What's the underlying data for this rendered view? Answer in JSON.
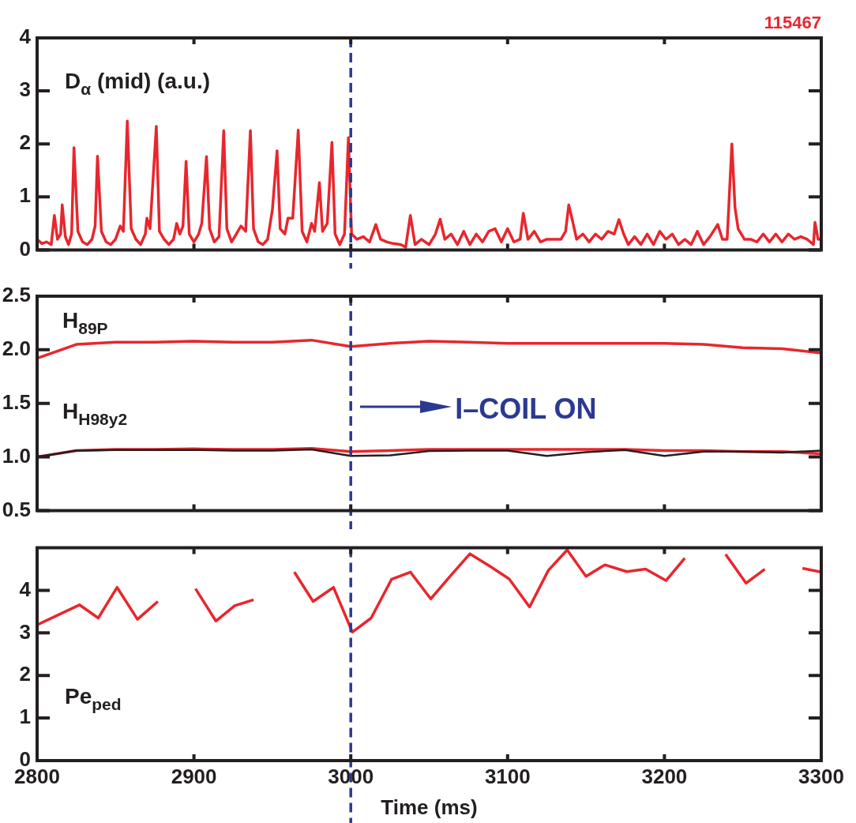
{
  "chart_data": [
    {
      "type": "line",
      "xlim": [
        2800,
        3300
      ],
      "xticks": [
        2800,
        2900,
        3000,
        3100,
        3200,
        3300
      ],
      "ylim": [
        0,
        4
      ],
      "yticks": [
        0,
        1,
        2,
        3,
        4
      ],
      "tick_labels": "y",
      "annotations": [
        "115467"
      ],
      "ref_lines": [
        {
          "axis": "x",
          "value": 3000,
          "color": "#2b3990",
          "line_style": "dashed"
        }
      ],
      "series": [
        {
          "name": "D$_{α}$ (mid) (a.u.)",
          "color": "#e8262d",
          "x": [
            2800,
            2803,
            2806,
            2809,
            2811,
            2813,
            2815,
            2816,
            2818,
            2820,
            2822,
            2823.5,
            2826,
            2829,
            2832,
            2835,
            2837,
            2838.5,
            2841,
            2844,
            2847,
            2850,
            2853,
            2855,
            2857.5,
            2860,
            2863,
            2866,
            2869,
            2870,
            2872,
            2876,
            2878,
            2881,
            2884,
            2887,
            2889,
            2891,
            2893,
            2895,
            2897,
            2900,
            2903,
            2905,
            2908,
            2910,
            2913,
            2916,
            2919,
            2921,
            2924,
            2927,
            2930,
            2933,
            2936,
            2938,
            2941,
            2944,
            2947,
            2950,
            2953,
            2955,
            2958,
            2960,
            2963,
            2966.5,
            2969,
            2972,
            2975,
            2977,
            2980,
            2982,
            2985,
            2988,
            2990,
            2993,
            2996,
            2998.5,
            3000.5,
            3004,
            3008,
            3012,
            3016,
            3019,
            3023,
            3027,
            3032,
            3035,
            3038,
            3041,
            3045,
            3050,
            3054,
            3057,
            3060,
            3064,
            3068,
            3072,
            3076,
            3080,
            3084,
            3088,
            3092,
            3096,
            3100,
            3104,
            3108,
            3110,
            3113,
            3117,
            3121,
            3125,
            3130,
            3134,
            3137,
            3139,
            3141,
            3144,
            3148,
            3152,
            3156,
            3160,
            3164,
            3168,
            3171,
            3174,
            3177,
            3181,
            3185,
            3189,
            3193,
            3197,
            3201,
            3205,
            3209,
            3213,
            3217,
            3221,
            3225,
            3229,
            3234,
            3237,
            3240,
            3243,
            3245,
            3247,
            3251,
            3255,
            3259,
            3263,
            3267,
            3271,
            3275,
            3279,
            3283,
            3287,
            3291,
            3295,
            3296,
            3298,
            3300
          ],
          "values": [
            0.2,
            0.12,
            0.15,
            0.1,
            0.65,
            0.2,
            0.3,
            0.85,
            0.25,
            0.1,
            0.3,
            1.93,
            0.35,
            0.15,
            0.1,
            0.2,
            0.45,
            1.77,
            0.35,
            0.15,
            0.1,
            0.2,
            0.45,
            0.35,
            2.43,
            0.4,
            0.2,
            0.1,
            0.3,
            0.6,
            0.4,
            2.33,
            0.35,
            0.2,
            0.1,
            0.2,
            0.5,
            0.3,
            0.45,
            1.67,
            0.3,
            0.15,
            0.3,
            0.5,
            1.76,
            0.4,
            0.15,
            0.25,
            2.25,
            0.4,
            0.15,
            0.3,
            0.45,
            0.35,
            2.25,
            0.4,
            0.15,
            0.1,
            0.2,
            0.75,
            1.87,
            0.4,
            0.3,
            0.6,
            0.6,
            2.26,
            0.35,
            0.15,
            0.5,
            0.35,
            1.27,
            0.35,
            0.5,
            2.03,
            0.3,
            0.1,
            0.3,
            2.12,
            0.3,
            0.2,
            0.25,
            0.15,
            0.48,
            0.2,
            0.15,
            0.12,
            0.1,
            0.05,
            0.65,
            0.1,
            0.2,
            0.1,
            0.3,
            0.58,
            0.2,
            0.3,
            0.1,
            0.35,
            0.1,
            0.3,
            0.15,
            0.35,
            0.4,
            0.15,
            0.4,
            0.15,
            0.2,
            0.69,
            0.2,
            0.35,
            0.15,
            0.2,
            0.2,
            0.2,
            0.35,
            0.85,
            0.6,
            0.2,
            0.3,
            0.15,
            0.3,
            0.2,
            0.35,
            0.3,
            0.57,
            0.3,
            0.1,
            0.25,
            0.1,
            0.3,
            0.1,
            0.35,
            0.2,
            0.3,
            0.1,
            0.2,
            0.1,
            0.35,
            0.1,
            0.25,
            0.48,
            0.2,
            0.2,
            2.0,
            0.8,
            0.4,
            0.2,
            0.2,
            0.15,
            0.3,
            0.15,
            0.3,
            0.15,
            0.3,
            0.2,
            0.25,
            0.2,
            0.1,
            0.52,
            0.2,
            0.2
          ]
        }
      ]
    },
    {
      "type": "line",
      "xlim": [
        2800,
        3300
      ],
      "xticks": [
        2800,
        2900,
        3000,
        3100,
        3200,
        3300
      ],
      "ylim": [
        0.5,
        2.5
      ],
      "yticks": [
        {
          "value": 0.5,
          "label": "0.5"
        },
        {
          "value": 1,
          "label": "1.0"
        },
        {
          "value": 1.5,
          "label": "1.5"
        },
        {
          "value": 2,
          "label": "2.0"
        },
        {
          "value": 2.5,
          "label": "2.5"
        }
      ],
      "tick_labels": "y",
      "x": [
        2800,
        2825,
        2850,
        2875,
        2900,
        2925,
        2950,
        2975,
        3000,
        3025,
        3050,
        3075,
        3100,
        3125,
        3150,
        3175,
        3200,
        3225,
        3250,
        3275,
        3300
      ],
      "annotations": [
        "I–COIL ON"
      ],
      "ref_lines": [
        {
          "axis": "x",
          "value": 3000,
          "color": "#2b3990",
          "line_style": "dashed"
        }
      ],
      "series": [
        {
          "name": "H$_{89P}$",
          "color": "#e8262d",
          "values": [
            1.92,
            2.05,
            2.07,
            2.07,
            2.08,
            2.07,
            2.07,
            2.09,
            2.03,
            2.06,
            2.08,
            2.07,
            2.06,
            2.06,
            2.06,
            2.06,
            2.06,
            2.05,
            2.02,
            2.01,
            1.97
          ]
        },
        {
          "name": "H$_{H98y2}$",
          "color": "#e8262d",
          "values": [
            1.0,
            1.06,
            1.07,
            1.07,
            1.075,
            1.07,
            1.07,
            1.08,
            1.05,
            1.06,
            1.07,
            1.07,
            1.07,
            1.07,
            1.07,
            1.07,
            1.06,
            1.06,
            1.05,
            1.05,
            1.03
          ]
        },
        {
          "color": "#231f20",
          "values": [
            1.0,
            1.06,
            1.065,
            1.065,
            1.065,
            1.06,
            1.06,
            1.07,
            1.01,
            1.015,
            1.055,
            1.06,
            1.06,
            1.01,
            1.045,
            1.065,
            1.01,
            1.05,
            1.05,
            1.04,
            1.06
          ]
        }
      ]
    },
    {
      "type": "line",
      "xlim": [
        2800,
        3300
      ],
      "xticks": [
        2800,
        2900,
        3000,
        3100,
        3200,
        3300
      ],
      "ylim": [
        0,
        5
      ],
      "yticks": [
        0,
        1,
        2,
        3,
        4
      ],
      "xlabel": "Time (ms)",
      "ref_lines": [
        {
          "axis": "x",
          "value": 3000,
          "color": "#2b3990",
          "line_style": "dashed"
        }
      ],
      "series": [
        {
          "name": "Pe$_{ped}$",
          "color": "#e8262d",
          "x": [
            2800,
            2827,
            2839,
            2851,
            2864,
            2877,
            2887,
            2901,
            2914,
            2926,
            2938,
            2952,
            2964,
            2976,
            2989,
            3001,
            3013,
            3026,
            3038,
            3051,
            3064,
            3076,
            3089,
            3101,
            3114,
            3126,
            3138,
            3150,
            3162,
            3176,
            3188,
            3201,
            3213,
            3226,
            3239,
            3252,
            3264,
            3276,
            3288,
            3300
          ],
          "values": [
            3.19,
            3.66,
            3.35,
            4.07,
            3.32,
            3.74,
            null,
            4.04,
            3.28,
            3.64,
            3.78,
            null,
            4.43,
            3.74,
            4.07,
            3.02,
            3.35,
            4.26,
            4.43,
            3.8,
            4.36,
            4.86,
            4.56,
            4.27,
            3.61,
            4.47,
            4.95,
            4.33,
            4.6,
            4.44,
            4.5,
            4.23,
            4.76,
            null,
            4.85,
            4.17,
            4.5,
            null,
            4.52,
            4.43
          ]
        }
      ]
    }
  ]
}
